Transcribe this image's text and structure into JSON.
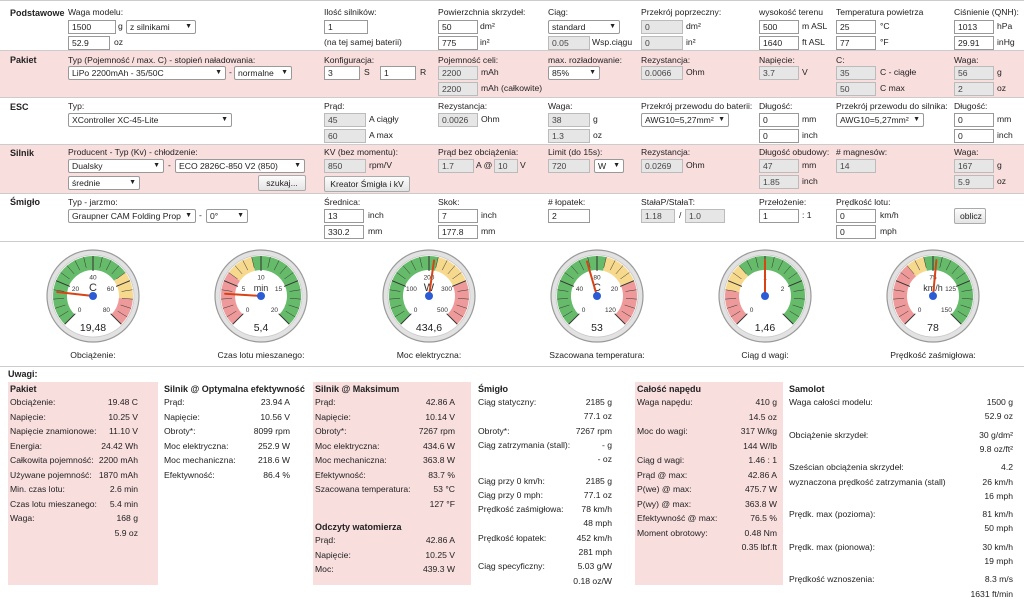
{
  "sections": {
    "podstawowe": "Podstawowe",
    "pakiet": "Pakiet",
    "esc": "ESC",
    "silnik": "Silnik",
    "smiglo": "Śmigło"
  },
  "podstawowe": {
    "waga_label": "Waga modelu:",
    "waga_g": "1500",
    "unit_g": "g",
    "waga_mode": "z silnikami",
    "waga_oz": "52.9",
    "unit_oz": "oz",
    "silniki_label": "Ilość silników:",
    "silniki_val": "1",
    "silniki_note": "(na tej samej baterii)",
    "pow_label": "Powierzchnia skrzydeł:",
    "pow_dm2": "50",
    "unit_dm2": "dm²",
    "pow_in2": "775",
    "unit_in2": "in²",
    "ciag_label": "Ciąg:",
    "ciag_sel": "standard",
    "ciag_wsp": "0.05",
    "ciag_wsp_unit": "Wsp.ciągu",
    "przekroj_label": "Przekrój poprzeczny:",
    "przekroj_dm2": "0",
    "przekroj_in2": "0",
    "wys_label": "wysokość terenu",
    "wys_m": "500",
    "wys_m_unit": "m ASL",
    "wys_ft": "1640",
    "wys_ft_unit": "ft ASL",
    "temp_label": "Temperatura powietrza",
    "temp_c": "25",
    "temp_c_unit": "°C",
    "temp_f": "77",
    "temp_f_unit": "°F",
    "cis_label": "Ciśnienie (QNH):",
    "cis_hpa": "1013",
    "cis_hpa_unit": "hPa",
    "cis_inhg": "29.91",
    "cis_inhg_unit": "inHg"
  },
  "pakiet": {
    "typ_label": "Typ (Pojemność / max. C) - stopień naładowania:",
    "typ_sel": "LiPo 2200mAh - 35/50C",
    "dash": "-",
    "stan_sel": "normalne",
    "konf_label": "Konfiguracja:",
    "konf_s": "3",
    "s": "S",
    "konf_r": "1",
    "r": "R",
    "poj_label": "Pojemność celi:",
    "poj_cell": "2200",
    "poj_unit": "mAh",
    "poj_total": "2200",
    "poj_total_unit": "mAh (całkowite)",
    "rozl_label": "max. rozładowanie:",
    "rozl_sel": "85%",
    "rez_label": "Rezystancja:",
    "rez_val": "0.0066",
    "rez_unit": "Ohm",
    "nap_label": "Napięcie:",
    "nap_val": "3.7",
    "nap_unit": "V",
    "c_label": "C:",
    "c_cont": "35",
    "c_cont_unit": "C - ciągłe",
    "c_max": "50",
    "c_max_unit": "C max",
    "waga_label": "Waga:",
    "waga_g": "56",
    "waga_oz": "2",
    "unit_g": "g",
    "unit_oz": "oz"
  },
  "esc": {
    "typ_label": "Typ:",
    "typ_sel": "XController XC-45-Lite",
    "prad_label": "Prąd:",
    "prad_cont": "45",
    "prad_cont_unit": "A ciągły",
    "prad_max": "60",
    "prad_max_unit": "A max",
    "rez_label": "Rezystancja:",
    "rez_val": "0.0026",
    "rez_unit": "Ohm",
    "waga_label": "Waga:",
    "waga_g": "38",
    "waga_oz": "1.3",
    "unit_g": "g",
    "unit_oz": "oz",
    "przew_bat_label": "Przekrój przewodu do baterii:",
    "przew_bat_sel": "AWG10=5,27mm²",
    "dl1_label": "Długość:",
    "dl1_mm": "0",
    "dl1_in": "0",
    "unit_mm": "mm",
    "unit_inch": "inch",
    "przew_sil_label": "Przekrój przewodu do silnika:",
    "przew_sil_sel": "AWG10=5,27mm²",
    "dl2_label": "Długość:",
    "dl2_mm": "0",
    "dl2_in": "0"
  },
  "silnik": {
    "prod_label": "Producent - Typ (Kv) - chłodzenie:",
    "prod_sel": "Dualsky",
    "dash": "-",
    "typ_sel": "ECO 2826C-850 V2 (850)",
    "chl_sel": "średnie",
    "szukaj": "szukaj...",
    "kv_label": "KV (bez momentu):",
    "kv_val": "850",
    "kv_unit": "rpm/V",
    "kreator": "Kreator Śmigła i kV",
    "io_label": "Prąd bez obciążenia:",
    "io_a": "1.7",
    "io_at": "A @",
    "io_v": "10",
    "io_v_unit": "V",
    "limit_label": "Limit (do 15s):",
    "limit_val": "720",
    "limit_sel": "W",
    "rez_label": "Rezystancja:",
    "rez_val": "0.0269",
    "rez_unit": "Ohm",
    "dl_label": "Długość obudowy:",
    "dl_mm": "47",
    "dl_in": "1.85",
    "unit_mm": "mm",
    "unit_inch": "inch",
    "mag_label": "# magnesów:",
    "mag_val": "14",
    "waga_label": "Waga:",
    "waga_g": "167",
    "waga_oz": "5.9",
    "unit_g": "g",
    "unit_oz": "oz"
  },
  "smiglo": {
    "typ_label": "Typ - jarzmo:",
    "typ_sel": "Graupner CAM Folding Prop",
    "dash": "-",
    "jarzmo_sel": "0°",
    "sr_label": "Średnica:",
    "sr_in": "13",
    "sr_mm": "330.2",
    "unit_inch": "inch",
    "unit_mm": "mm",
    "skok_label": "Skok:",
    "skok_in": "7",
    "skok_mm": "177.8",
    "lop_label": "# łopatek:",
    "lop_val": "2",
    "stalap_label": "StałaP/StałaT:",
    "stalap_p": "1.18",
    "slash": "/",
    "stalap_t": "1.0",
    "przel_label": "Przełożenie:",
    "przel_val": "1",
    "przel_sep": ": 1",
    "lot_label": "Prędkość lotu:",
    "lot_kmh": "0",
    "lot_kmh_unit": "km/h",
    "lot_mph": "0",
    "lot_mph_unit": "mph",
    "oblicz": "oblicz"
  },
  "gauges": [
    {
      "unit": "C",
      "value": "19,48",
      "label": "Obciążenie:",
      "needle": 0.19,
      "ticks": [
        "40",
        "20",
        "0",
        "60",
        "80"
      ]
    },
    {
      "unit": "min",
      "value": "5,4",
      "label": "Czas lotu mieszanego:",
      "needle": 0.18,
      "ticks": [
        "10",
        "5",
        "0",
        "15",
        "20"
      ]
    },
    {
      "unit": "W",
      "value": "434,6",
      "label": "Moc elektryczna:",
      "needle": 0.53,
      "ticks": [
        "200",
        "100",
        "0",
        "300",
        "500"
      ]
    },
    {
      "unit": "C",
      "value": "53",
      "label": "Szacowana temperatura:",
      "needle": 0.44,
      "ticks": [
        "80",
        "40",
        "0",
        "20",
        "120"
      ]
    },
    {
      "unit": "",
      "value": "1,46",
      "label": "Ciąg d wagi:",
      "needle": 0.5,
      "ticks": [
        "1",
        "",
        "0",
        "2",
        ""
      ]
    },
    {
      "unit": "km/h",
      "value": "78",
      "label": "Prędkość zaśmigłowa:",
      "needle": 0.52,
      "ticks": [
        "75",
        "",
        "0",
        "125",
        "150"
      ]
    }
  ],
  "uwagi": {
    "title": "Uwagi:",
    "pakiet": {
      "title": "Pakiet",
      "rows": [
        [
          "Obciążenie:",
          "19.48 C"
        ],
        [
          "Napięcie:",
          "10.25 V"
        ],
        [
          "Napięcie znamionowe:",
          "11.10 V"
        ],
        [
          "Energia:",
          "24.42 Wh"
        ],
        [
          "Całkowita pojemność:",
          "2200 mAh"
        ],
        [
          "Używane pojemność:",
          "1870 mAh"
        ],
        [
          "Min. czas lotu:",
          "2.6 min"
        ],
        [
          "Czas lotu mieszanego:",
          "5.4 min"
        ],
        [
          "Waga:",
          "168 g"
        ],
        [
          "",
          "5.9 oz"
        ]
      ]
    },
    "opt": {
      "title": "Silnik @ Optymalna efektywność",
      "rows": [
        [
          "Prąd:",
          "23.94 A"
        ],
        [
          "Napięcie:",
          "10.56 V"
        ],
        [
          "Obroty*:",
          "8099 rpm"
        ],
        [
          "Moc elektryczna:",
          "252.9 W"
        ],
        [
          "Moc mechaniczna:",
          "218.6 W"
        ],
        [
          "Efektywność:",
          "86.4 %"
        ]
      ]
    },
    "max": {
      "title": "Silnik @ Maksimum",
      "rows": [
        [
          "Prąd:",
          "42.86 A"
        ],
        [
          "Napięcie:",
          "10.14 V"
        ],
        [
          "Obroty*:",
          "7267 rpm"
        ],
        [
          "Moc elektryczna:",
          "434.6 W"
        ],
        [
          "Moc mechaniczna:",
          "363.8 W"
        ],
        [
          "Efektywność:",
          "83.7 %"
        ],
        [
          "Szacowana temperatura:",
          "53 °C"
        ],
        [
          "",
          "127 °F"
        ]
      ]
    },
    "wat": {
      "title": "Odczyty watomierza",
      "rows": [
        [
          "Prąd:",
          "42.86 A"
        ],
        [
          "Napięcie:",
          "10.25 V"
        ],
        [
          "Moc:",
          "439.3 W"
        ]
      ]
    },
    "smiglo": {
      "title": "Śmigło",
      "rows": [
        [
          "Ciąg statyczny:",
          "2185 g"
        ],
        [
          "",
          "77.1 oz"
        ],
        [
          "Obroty*:",
          "7267 rpm"
        ],
        [
          "Ciąg zatrzymania (stall):",
          "- g"
        ],
        [
          "",
          "- oz"
        ],
        [
          "Ciąg przy 0 km/h:",
          "2185 g"
        ],
        [
          "Ciąg przy 0 mph:",
          "77.1 oz"
        ],
        [
          "Prędkość zaśmigłowa:",
          "78 km/h"
        ],
        [
          "",
          "48 mph"
        ],
        [
          "Prędkość łopatek:",
          "452 km/h"
        ],
        [
          "",
          "281 mph"
        ],
        [
          "Ciąg specyficzny:",
          "5.03 g/W"
        ],
        [
          "",
          "0.18 oz/W"
        ]
      ]
    },
    "naped": {
      "title": "Całość napędu",
      "rows": [
        [
          "Waga napędu:",
          "410 g"
        ],
        [
          "",
          "14.5 oz"
        ],
        [
          "Moc do wagi:",
          "317 W/kg"
        ],
        [
          "",
          "144 W/lb"
        ],
        [
          "Ciąg d wagi:",
          "1.46 : 1"
        ],
        [
          "Prąd @ max:",
          "42.86 A"
        ],
        [
          "P(we) @ max:",
          "475.7 W"
        ],
        [
          "P(wy) @ max:",
          "363.8 W"
        ],
        [
          "Efektywność @ max:",
          "76.5 %"
        ],
        [
          "Moment obrotowy:",
          "0.48 Nm"
        ],
        [
          "",
          "0.35 lbf.ft"
        ]
      ]
    },
    "samolot": {
      "title": "Samolot",
      "rows": [
        [
          "Waga całości modelu:",
          "1500 g"
        ],
        [
          "",
          "52.9 oz"
        ],
        [
          "Obciążenie skrzydeł:",
          "30 g/dm²"
        ],
        [
          "",
          "9.8 oz/ft²"
        ],
        [
          "Sześcian obciążenia skrzydeł:",
          "4.2"
        ],
        [
          "wyznaczona prędkość zatrzymania (stall)",
          "26 km/h"
        ],
        [
          "",
          "16 mph"
        ],
        [
          "Prędk. max (pozioma):",
          "81 km/h"
        ],
        [
          "",
          "50 mph"
        ],
        [
          "Prędk. max (pionowa):",
          "30 km/h"
        ],
        [
          "",
          "19 mph"
        ],
        [
          "Prędkość wznoszenia:",
          "8.3 m/s"
        ],
        [
          "",
          "1631 ft/min"
        ]
      ]
    }
  }
}
